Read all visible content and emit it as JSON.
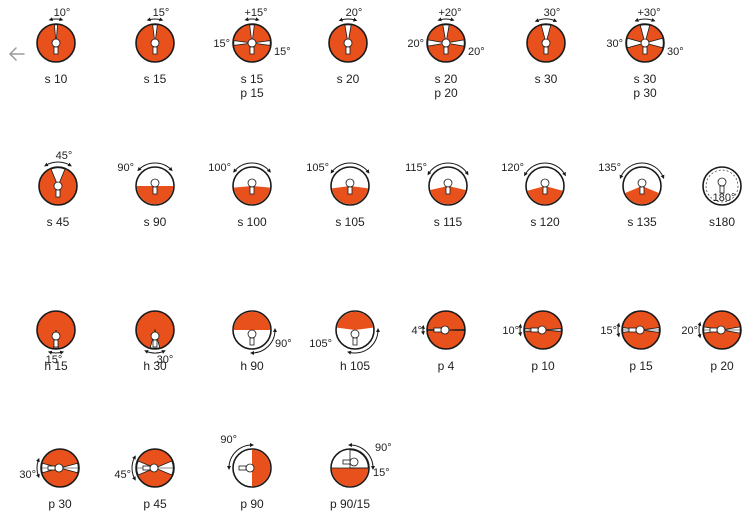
{
  "nav": {
    "back_icon": "arrow-left-icon"
  },
  "colors": {
    "fill": "#e8501c",
    "line": "#1a1a1a",
    "text": "#222222",
    "muted": "#9a9a9a"
  },
  "rows": [
    {
      "items": [
        {
          "id": "s10",
          "label": "s 10",
          "angles": [
            "10°"
          ]
        },
        {
          "id": "s15",
          "label": "s 15",
          "angles": [
            "15°"
          ]
        },
        {
          "id": "s15p15",
          "label": "s 15",
          "label2": "p 15",
          "angles": [
            "+15°",
            "15°",
            "15°"
          ]
        },
        {
          "id": "s20",
          "label": "s 20",
          "angles": [
            "20°"
          ]
        },
        {
          "id": "s20p20",
          "label": "s 20",
          "label2": "p 20",
          "angles": [
            "+20°",
            "20°",
            "20°"
          ]
        },
        {
          "id": "s30",
          "label": "s 30",
          "angles": [
            "30°"
          ]
        },
        {
          "id": "s30p30",
          "label": "s 30",
          "label2": "p 30",
          "angles": [
            "+30°",
            "30°",
            "30°"
          ]
        }
      ]
    },
    {
      "items": [
        {
          "id": "s45",
          "label": "s 45",
          "angles": [
            "45°"
          ]
        },
        {
          "id": "s90",
          "label": "s 90",
          "angles": [
            "90°"
          ]
        },
        {
          "id": "s100",
          "label": "s 100",
          "angles": [
            "100°"
          ]
        },
        {
          "id": "s105",
          "label": "s 105",
          "angles": [
            "105°"
          ]
        },
        {
          "id": "s115",
          "label": "s 115",
          "angles": [
            "115°"
          ]
        },
        {
          "id": "s120",
          "label": "s 120",
          "angles": [
            "120°"
          ]
        },
        {
          "id": "s135",
          "label": "s 135",
          "angles": [
            "135°"
          ]
        },
        {
          "id": "s180",
          "label": "s180",
          "angles": [
            "180°"
          ]
        }
      ]
    },
    {
      "items": [
        {
          "id": "h15",
          "label": "h 15",
          "angles": [
            "15°"
          ]
        },
        {
          "id": "h30",
          "label": "h 30",
          "angles": [
            "30°"
          ]
        },
        {
          "id": "h90",
          "label": "h 90",
          "angles": [
            "90°"
          ]
        },
        {
          "id": "h105",
          "label": "h 105",
          "angles": [
            "105°"
          ]
        },
        {
          "id": "p4",
          "label": "p 4",
          "angles": [
            "4°"
          ]
        },
        {
          "id": "p10",
          "label": "p 10",
          "angles": [
            "10°"
          ]
        },
        {
          "id": "p15",
          "label": "p 15",
          "angles": [
            "15°"
          ]
        },
        {
          "id": "p20",
          "label": "p 20",
          "angles": [
            "20°"
          ]
        }
      ]
    },
    {
      "items": [
        {
          "id": "p30",
          "label": "p 30",
          "angles": [
            "30°"
          ]
        },
        {
          "id": "p45",
          "label": "p 45",
          "angles": [
            "45°"
          ]
        },
        {
          "id": "p90",
          "label": "p 90",
          "angles": [
            "90°"
          ]
        },
        {
          "id": "p90_15",
          "label": "p 90/15",
          "angles": [
            "90°",
            "15°"
          ]
        }
      ]
    }
  ]
}
